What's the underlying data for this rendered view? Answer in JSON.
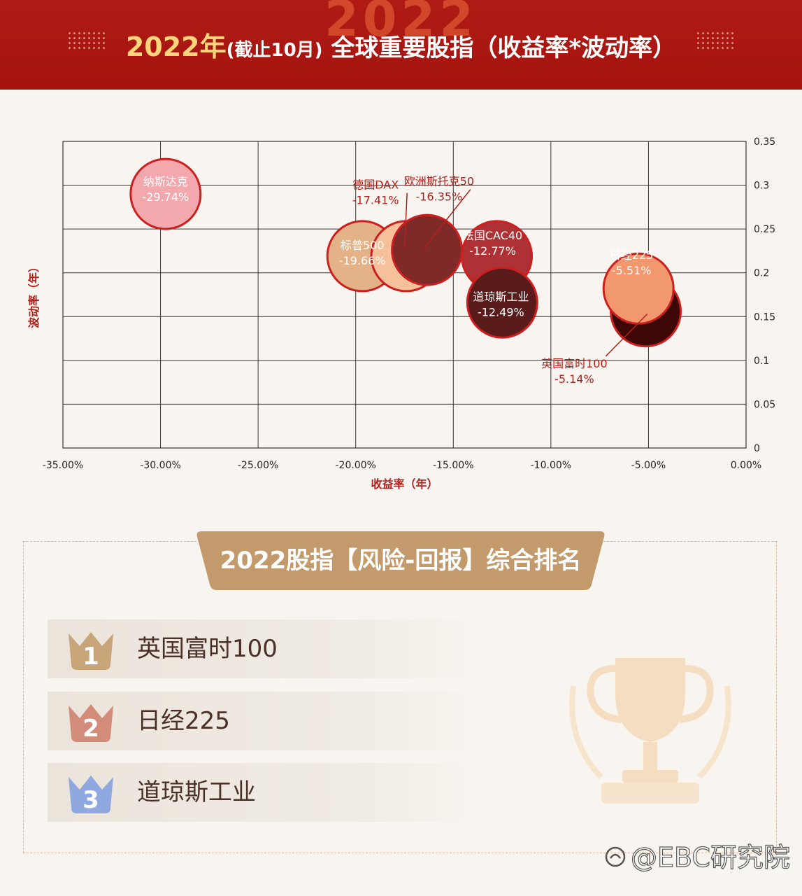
{
  "header": {
    "watermark_year": "2022",
    "title_year": "2022年",
    "title_paren": "(截止10月)",
    "title_main": "全球重要股指（收益率*波动率）"
  },
  "chart_data": {
    "type": "scatter",
    "bubble": true,
    "xlabel": "收益率（年）",
    "ylabel": "波动率（年）",
    "xlim": [
      -0.35,
      0
    ],
    "ylim": [
      0,
      0.35
    ],
    "x_ticks": [
      "-35.00%",
      "-30.00%",
      "-25.00%",
      "-20.00%",
      "-15.00%",
      "-10.00%",
      "-5.00%",
      "0.00%"
    ],
    "y_ticks": [
      "0",
      "0.05",
      "0.1",
      "0.15",
      "0.2",
      "0.25",
      "0.3",
      "0.35"
    ],
    "grid": true,
    "points": [
      {
        "name": "纳斯达克",
        "label": "-29.74%",
        "x": -0.2974,
        "y": 0.29,
        "color": "#f2a8ad"
      },
      {
        "name": "德国DAX",
        "label": "-17.41%",
        "x": -0.1741,
        "y": 0.219,
        "color": "#f6c09b"
      },
      {
        "name": "标普500",
        "label": "-19.66%",
        "x": -0.1966,
        "y": 0.219,
        "color": "#e3b387"
      },
      {
        "name": "欧洲斯托克50",
        "label": "-16.35%",
        "x": -0.1635,
        "y": 0.226,
        "color": "#7e2a29"
      },
      {
        "name": "法国CAC40",
        "label": "-12.77%",
        "x": -0.1277,
        "y": 0.219,
        "color": "#ae3135"
      },
      {
        "name": "道琼斯工业",
        "label": "-12.49%",
        "x": -0.1249,
        "y": 0.166,
        "color": "#5a1b1b"
      },
      {
        "name": "英国富时100",
        "label": "-5.14%",
        "x": -0.0514,
        "y": 0.156,
        "color": "#3d0706"
      },
      {
        "name": "日经225",
        "label": "-5.51%",
        "x": -0.0551,
        "y": 0.182,
        "color": "#f1986f"
      }
    ]
  },
  "ranking": {
    "title": "2022股指【风险-回报】综合排名",
    "items": [
      {
        "rank": "1",
        "name": "英国富时100",
        "color": "#c8a479"
      },
      {
        "rank": "2",
        "name": "日经225",
        "color": "#d38b7a"
      },
      {
        "rank": "3",
        "name": "道琼斯工业",
        "color": "#8fa8df"
      }
    ]
  },
  "watermark": "@EBC研究院"
}
